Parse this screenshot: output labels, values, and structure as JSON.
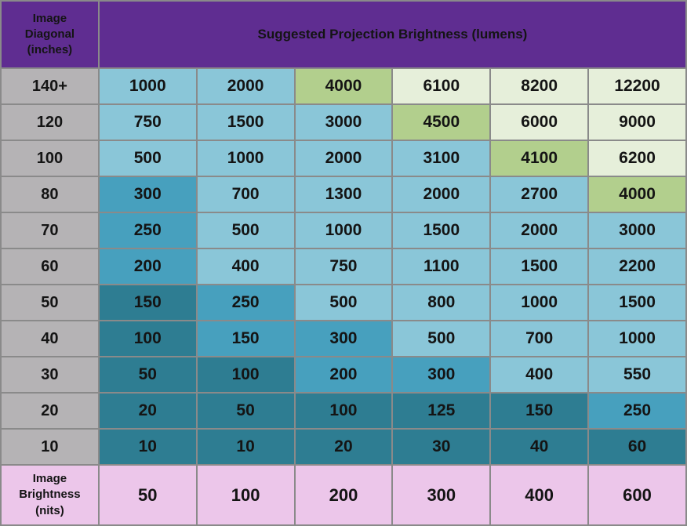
{
  "table": {
    "corner_label": "Image\nDiagonal\n(inches)",
    "header_title": "Suggested Projection Brightness (lumens)",
    "footer_label": "Image\nBrightness\n(nits)"
  },
  "colors": {
    "header_purple": "#5F2D91",
    "row_header_gray": "#B5B3B5",
    "light_blue": "#8AC6D8",
    "medium_blue": "#47A0BE",
    "dark_teal": "#2E7D92",
    "green": "#B2CF8D",
    "pale_green": "#E6EFDA",
    "pink": "#ECC6EA",
    "border_gray": "#8A8A8A",
    "header_border": "#DCD2E6",
    "text_dark": "#141414",
    "text_white": "#FFFFFF"
  },
  "chart_data": {
    "type": "table",
    "title": "Suggested Projection Brightness (lumens)",
    "row_axis_label": "Image Diagonal (inches)",
    "column_axis_label": "Image Brightness (nits)",
    "column_nits": [
      50,
      100,
      200,
      300,
      400,
      600
    ],
    "rows": [
      {
        "diagonal": "140+",
        "lumens": [
          1000,
          2000,
          4000,
          6100,
          8200,
          12200
        ],
        "shades": [
          "light_blue",
          "light_blue",
          "green",
          "pale_green",
          "pale_green",
          "pale_green"
        ]
      },
      {
        "diagonal": "120",
        "lumens": [
          750,
          1500,
          3000,
          4500,
          6000,
          9000
        ],
        "shades": [
          "light_blue",
          "light_blue",
          "light_blue",
          "green",
          "pale_green",
          "pale_green"
        ]
      },
      {
        "diagonal": "100",
        "lumens": [
          500,
          1000,
          2000,
          3100,
          4100,
          6200
        ],
        "shades": [
          "light_blue",
          "light_blue",
          "light_blue",
          "light_blue",
          "green",
          "pale_green"
        ]
      },
      {
        "diagonal": "80",
        "lumens": [
          300,
          700,
          1300,
          2000,
          2700,
          4000
        ],
        "shades": [
          "medium_blue",
          "light_blue",
          "light_blue",
          "light_blue",
          "light_blue",
          "green"
        ]
      },
      {
        "diagonal": "70",
        "lumens": [
          250,
          500,
          1000,
          1500,
          2000,
          3000
        ],
        "shades": [
          "medium_blue",
          "light_blue",
          "light_blue",
          "light_blue",
          "light_blue",
          "light_blue"
        ]
      },
      {
        "diagonal": "60",
        "lumens": [
          200,
          400,
          750,
          1100,
          1500,
          2200
        ],
        "shades": [
          "medium_blue",
          "light_blue",
          "light_blue",
          "light_blue",
          "light_blue",
          "light_blue"
        ]
      },
      {
        "diagonal": "50",
        "lumens": [
          150,
          250,
          500,
          800,
          1000,
          1500
        ],
        "shades": [
          "dark_teal",
          "medium_blue",
          "light_blue",
          "light_blue",
          "light_blue",
          "light_blue"
        ]
      },
      {
        "diagonal": "40",
        "lumens": [
          100,
          150,
          300,
          500,
          700,
          1000
        ],
        "shades": [
          "dark_teal",
          "medium_blue",
          "medium_blue",
          "light_blue",
          "light_blue",
          "light_blue"
        ]
      },
      {
        "diagonal": "30",
        "lumens": [
          50,
          100,
          200,
          300,
          400,
          550
        ],
        "shades": [
          "dark_teal",
          "dark_teal",
          "medium_blue",
          "medium_blue",
          "light_blue",
          "light_blue"
        ]
      },
      {
        "diagonal": "20",
        "lumens": [
          20,
          50,
          100,
          125,
          150,
          250
        ],
        "shades": [
          "dark_teal",
          "dark_teal",
          "dark_teal",
          "dark_teal",
          "dark_teal",
          "medium_blue"
        ]
      },
      {
        "diagonal": "10",
        "lumens": [
          10,
          10,
          20,
          30,
          40,
          60
        ],
        "shades": [
          "dark_teal",
          "dark_teal",
          "dark_teal",
          "dark_teal",
          "dark_teal",
          "dark_teal"
        ]
      }
    ],
    "legend_position": "none",
    "grid": true
  }
}
